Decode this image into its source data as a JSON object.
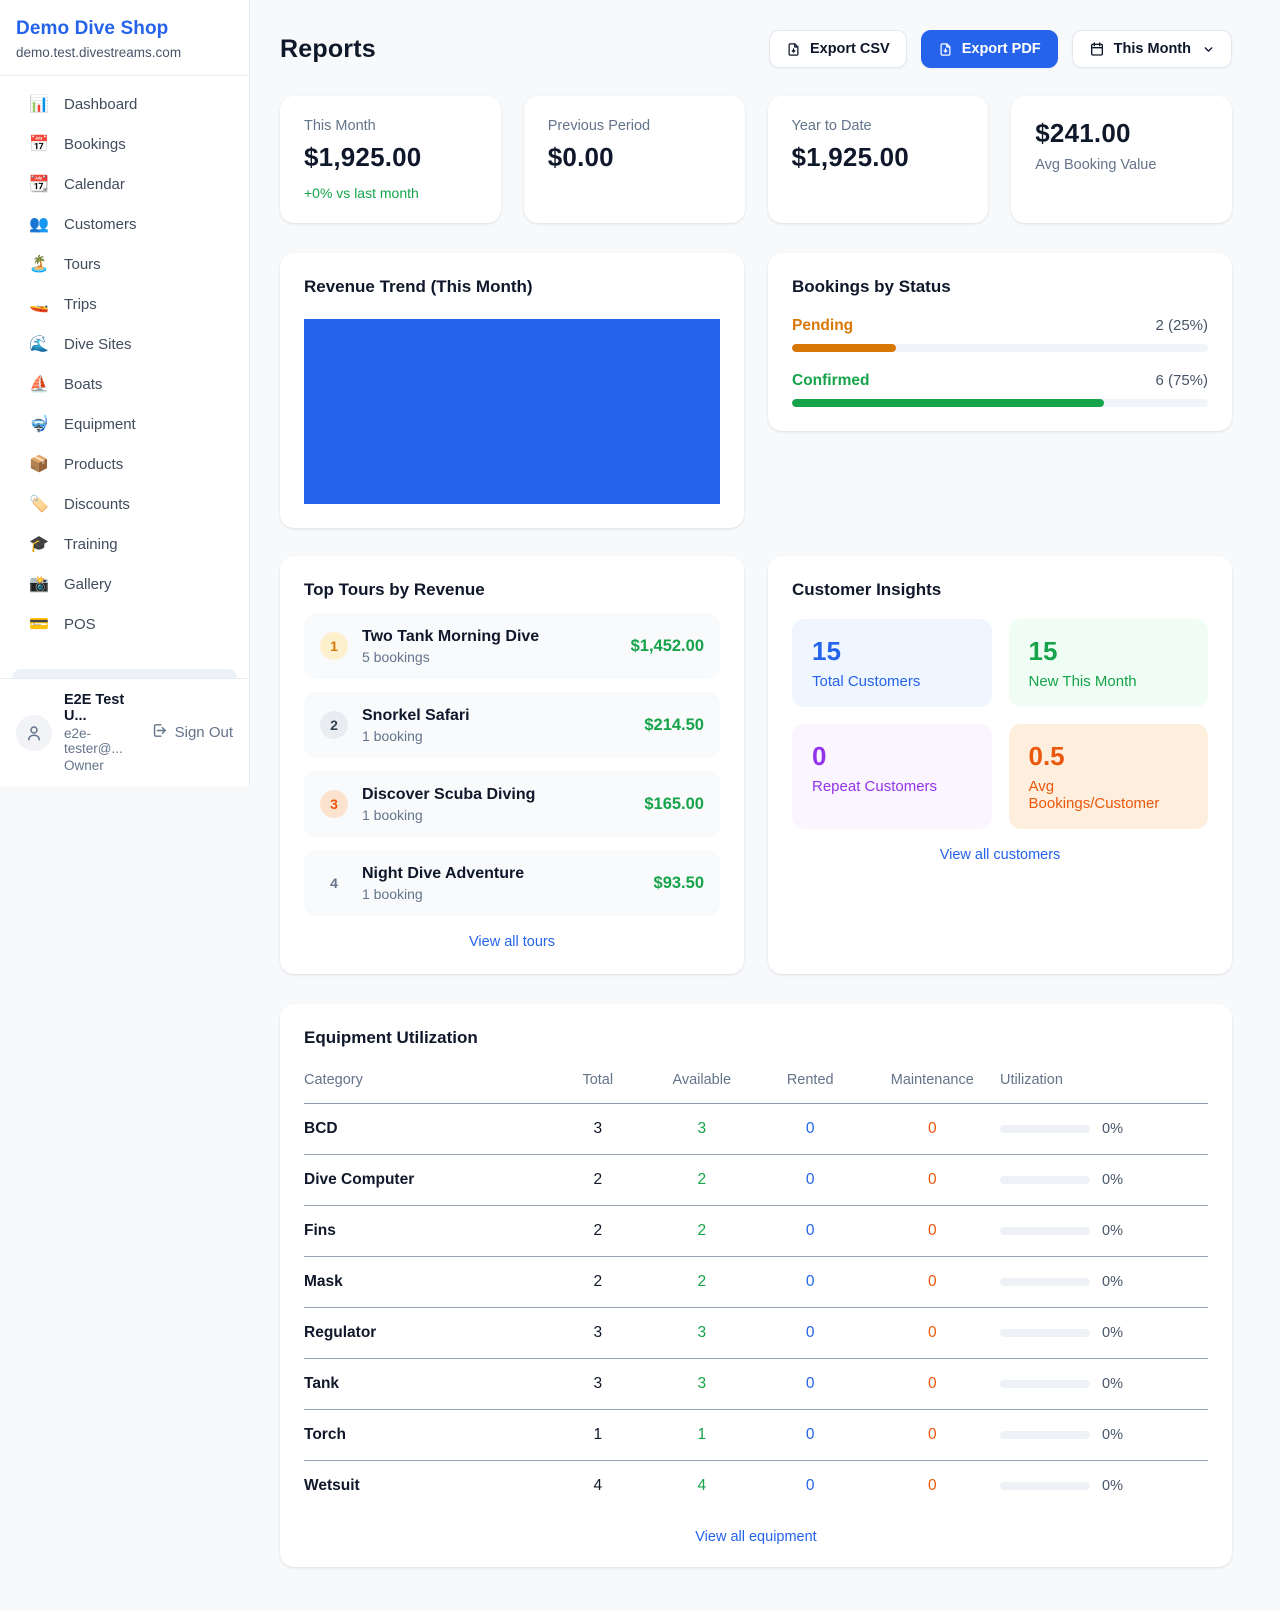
{
  "sidebar": {
    "brand": "Demo Dive Shop",
    "domain": "demo.test.divestreams.com",
    "items": [
      {
        "icon": "📊",
        "label": "Dashboard"
      },
      {
        "icon": "📅",
        "label": "Bookings"
      },
      {
        "icon": "📆",
        "label": "Calendar"
      },
      {
        "icon": "👥",
        "label": "Customers"
      },
      {
        "icon": "🏝️",
        "label": "Tours"
      },
      {
        "icon": "🚤",
        "label": "Trips"
      },
      {
        "icon": "🌊",
        "label": "Dive Sites"
      },
      {
        "icon": "⛵",
        "label": "Boats"
      },
      {
        "icon": "🤿",
        "label": "Equipment"
      },
      {
        "icon": "📦",
        "label": "Products"
      },
      {
        "icon": "🏷️",
        "label": "Discounts"
      },
      {
        "icon": "🎓",
        "label": "Training"
      },
      {
        "icon": "📸",
        "label": "Gallery"
      },
      {
        "icon": "💳",
        "label": "POS"
      }
    ],
    "user": {
      "name": "E2E Test U...",
      "email": "e2e-tester@...",
      "role": "Owner",
      "sign_out": "Sign Out"
    }
  },
  "header": {
    "title": "Reports",
    "export_csv": "Export CSV",
    "export_pdf": "Export PDF",
    "period": "This Month"
  },
  "colors": {
    "accent_blue": "#2563eb",
    "green": "#16a34a",
    "amber": "#d97706",
    "orange": "#ea580c",
    "purple": "#9333ea"
  },
  "stats": [
    {
      "label": "This Month",
      "value": "$1,925.00",
      "delta": "+0% vs last month"
    },
    {
      "label": "Previous Period",
      "value": "$0.00"
    },
    {
      "label": "Year to Date",
      "value": "$1,925.00"
    },
    {
      "label": "Avg Booking Value",
      "value": "$241.00"
    }
  ],
  "revenue_trend": {
    "title": "Revenue Trend (This Month)",
    "bar_color": "#2563eb"
  },
  "bookings_by_status": {
    "title": "Bookings by Status",
    "rows": [
      {
        "label": "Pending",
        "count": "2 (25%)",
        "pct": 25
      },
      {
        "label": "Confirmed",
        "count": "6 (75%)",
        "pct": 75
      }
    ]
  },
  "top_tours": {
    "title": "Top Tours by Revenue",
    "rows": [
      {
        "rank": "1",
        "name": "Two Tank Morning Dive",
        "bookings": "5 bookings",
        "revenue": "$1,452.00"
      },
      {
        "rank": "2",
        "name": "Snorkel Safari",
        "bookings": "1 booking",
        "revenue": "$214.50"
      },
      {
        "rank": "3",
        "name": "Discover Scuba Diving",
        "bookings": "1 booking",
        "revenue": "$165.00"
      },
      {
        "rank": "4",
        "name": "Night Dive Adventure",
        "bookings": "1 booking",
        "revenue": "$93.50"
      }
    ],
    "link": "View all tours"
  },
  "customer_insights": {
    "title": "Customer Insights",
    "tiles": [
      {
        "value": "15",
        "label": "Total Customers"
      },
      {
        "value": "15",
        "label": "New This Month"
      },
      {
        "value": "0",
        "label": "Repeat Customers"
      },
      {
        "value": "0.5",
        "label": "Avg Bookings/Customer"
      }
    ],
    "link": "View all customers"
  },
  "equipment": {
    "title": "Equipment Utilization",
    "columns": [
      "Category",
      "Total",
      "Available",
      "Rented",
      "Maintenance",
      "Utilization"
    ],
    "rows": [
      {
        "category": "BCD",
        "total": "3",
        "available": "3",
        "rented": "0",
        "maintenance": "0",
        "utilization": "0%"
      },
      {
        "category": "Dive Computer",
        "total": "2",
        "available": "2",
        "rented": "0",
        "maintenance": "0",
        "utilization": "0%"
      },
      {
        "category": "Fins",
        "total": "2",
        "available": "2",
        "rented": "0",
        "maintenance": "0",
        "utilization": "0%"
      },
      {
        "category": "Mask",
        "total": "2",
        "available": "2",
        "rented": "0",
        "maintenance": "0",
        "utilization": "0%"
      },
      {
        "category": "Regulator",
        "total": "3",
        "available": "3",
        "rented": "0",
        "maintenance": "0",
        "utilization": "0%"
      },
      {
        "category": "Tank",
        "total": "3",
        "available": "3",
        "rented": "0",
        "maintenance": "0",
        "utilization": "0%"
      },
      {
        "category": "Torch",
        "total": "1",
        "available": "1",
        "rented": "0",
        "maintenance": "0",
        "utilization": "0%"
      },
      {
        "category": "Wetsuit",
        "total": "4",
        "available": "4",
        "rented": "0",
        "maintenance": "0",
        "utilization": "0%"
      }
    ],
    "link": "View all equipment"
  }
}
